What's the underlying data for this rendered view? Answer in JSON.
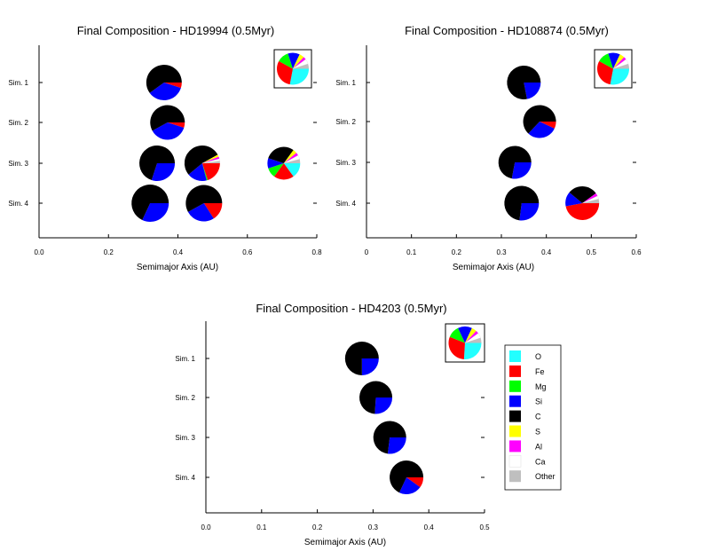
{
  "colors": {
    "O": "#22ffff",
    "Fe": "#ff0000",
    "Mg": "#00ff00",
    "Si": "#0000ff",
    "C": "#000000",
    "S": "#ffff00",
    "Al": "#ff00ff",
    "Ca": "#ffffff",
    "Other": "#bfbfbf"
  },
  "legend": {
    "items": [
      {
        "key": "O",
        "label": "O"
      },
      {
        "key": "Fe",
        "label": "Fe"
      },
      {
        "key": "Mg",
        "label": "Mg"
      },
      {
        "key": "Si",
        "label": "Si"
      },
      {
        "key": "C",
        "label": "C"
      },
      {
        "key": "S",
        "label": "S"
      },
      {
        "key": "Al",
        "label": "Al"
      },
      {
        "key": "Ca",
        "label": "Ca"
      },
      {
        "key": "Other",
        "label": "Other"
      }
    ]
  },
  "chart_data": [
    {
      "type": "scatter",
      "subtype": "pie-markers",
      "title": "Final Composition - HD19994 (0.5Myr)",
      "xlabel": "Semimajor Axis (AU)",
      "xlim": [
        0.0,
        0.8
      ],
      "xticks": [
        "0.0",
        "0.2",
        "0.4",
        "0.6",
        "0.8"
      ],
      "yticks": [
        "Sim. 1",
        "Sim. 2",
        "Sim. 3",
        "Sim. 4"
      ],
      "reference": {
        "O": 0.28,
        "Fe": 0.3,
        "Mg": 0.12,
        "Si": 0.12,
        "C": 0.0,
        "S": 0.05,
        "Al": 0.03,
        "Ca": 0.05,
        "Other": 0.05
      },
      "planets": [
        {
          "sim": 1,
          "a": 0.36,
          "mass": 1.0,
          "comp": {
            "O": 0,
            "Fe": 0.05,
            "Mg": 0,
            "Si": 0.35,
            "C": 0.6,
            "S": 0,
            "Al": 0,
            "Ca": 0,
            "Other": 0
          }
        },
        {
          "sim": 2,
          "a": 0.37,
          "mass": 0.95,
          "comp": {
            "O": 0,
            "Fe": 0.05,
            "Mg": 0,
            "Si": 0.37,
            "C": 0.58,
            "S": 0,
            "Al": 0,
            "Ca": 0,
            "Other": 0
          }
        },
        {
          "sim": 3,
          "a": 0.34,
          "mass": 1.0,
          "comp": {
            "O": 0,
            "Fe": 0,
            "Mg": 0,
            "Si": 0.3,
            "C": 0.7,
            "S": 0,
            "Al": 0,
            "Ca": 0,
            "Other": 0
          }
        },
        {
          "sim": 3,
          "a": 0.47,
          "mass": 1.0,
          "comp": {
            "O": 0,
            "Fe": 0.2,
            "Mg": 0.01,
            "Si": 0.18,
            "C": 0.53,
            "S": 0.02,
            "Al": 0.02,
            "Ca": 0.02,
            "Other": 0.02
          }
        },
        {
          "sim": 3,
          "a": 0.705,
          "mass": 0.85,
          "comp": {
            "O": 0.15,
            "Fe": 0.2,
            "Mg": 0.1,
            "Si": 0.1,
            "C": 0.3,
            "S": 0.04,
            "Al": 0.03,
            "Ca": 0.04,
            "Other": 0.04
          }
        },
        {
          "sim": 4,
          "a": 0.32,
          "mass": 1.1,
          "comp": {
            "O": 0,
            "Fe": 0,
            "Mg": 0,
            "Si": 0.32,
            "C": 0.68,
            "S": 0,
            "Al": 0,
            "Ca": 0,
            "Other": 0
          }
        },
        {
          "sim": 4,
          "a": 0.475,
          "mass": 1.05,
          "comp": {
            "O": 0,
            "Fe": 0.16,
            "Mg": 0,
            "Si": 0.26,
            "C": 0.58,
            "S": 0,
            "Al": 0,
            "Ca": 0,
            "Other": 0
          }
        }
      ]
    },
    {
      "type": "scatter",
      "subtype": "pie-markers",
      "title": "Final Composition - HD108874 (0.5Myr)",
      "xlabel": "Semimajor Axis (AU)",
      "xlim": [
        0.0,
        0.6
      ],
      "xticks": [
        "0",
        "0.1",
        "0.2",
        "0.3",
        "0.4",
        "0.5",
        "0.6"
      ],
      "yticks": [
        "Sim. 1",
        "Sim. 2",
        "Sim. 3",
        "Sim. 4"
      ],
      "reference": {
        "O": 0.28,
        "Fe": 0.3,
        "Mg": 0.12,
        "Si": 0.12,
        "C": 0.0,
        "S": 0.05,
        "Al": 0.03,
        "Ca": 0.05,
        "Other": 0.05
      },
      "planets": [
        {
          "sim": 1,
          "a": 0.35,
          "mass": 1.0,
          "comp": {
            "O": 0,
            "Fe": 0,
            "Mg": 0,
            "Si": 0.22,
            "C": 0.78,
            "S": 0,
            "Al": 0,
            "Ca": 0,
            "Other": 0
          }
        },
        {
          "sim": 2,
          "a": 0.385,
          "mass": 0.95,
          "comp": {
            "O": 0,
            "Fe": 0.07,
            "Mg": 0,
            "Si": 0.3,
            "C": 0.63,
            "S": 0,
            "Al": 0,
            "Ca": 0,
            "Other": 0
          }
        },
        {
          "sim": 3,
          "a": 0.33,
          "mass": 0.95,
          "comp": {
            "O": 0,
            "Fe": 0,
            "Mg": 0,
            "Si": 0.28,
            "C": 0.72,
            "S": 0,
            "Al": 0,
            "Ca": 0,
            "Other": 0
          }
        },
        {
          "sim": 4,
          "a": 0.345,
          "mass": 1.05,
          "comp": {
            "O": 0,
            "Fe": 0,
            "Mg": 0,
            "Si": 0.27,
            "C": 0.73,
            "S": 0,
            "Al": 0,
            "Ca": 0,
            "Other": 0
          }
        },
        {
          "sim": 4,
          "a": 0.48,
          "mass": 1.0,
          "comp": {
            "O": 0,
            "Fe": 0.47,
            "Mg": 0,
            "Si": 0.14,
            "C": 0.29,
            "S": 0,
            "Al": 0.03,
            "Ca": 0.03,
            "Other": 0.04
          }
        }
      ]
    },
    {
      "type": "scatter",
      "subtype": "pie-markers",
      "title": "Final Composition - HD4203 (0.5Myr)",
      "xlabel": "Semimajor Axis (AU)",
      "xlim": [
        0.0,
        0.5
      ],
      "xticks": [
        "0.0",
        "0.1",
        "0.2",
        "0.3",
        "0.4",
        "0.5"
      ],
      "yticks": [
        "Sim. 1",
        "Sim. 2",
        "Sim. 3",
        "Sim. 4"
      ],
      "reference": {
        "O": 0.26,
        "Fe": 0.3,
        "Mg": 0.12,
        "Si": 0.14,
        "C": 0.0,
        "S": 0.05,
        "Al": 0.03,
        "Ca": 0.05,
        "Other": 0.05
      },
      "planets": [
        {
          "sim": 1,
          "a": 0.28,
          "mass": 1.0,
          "comp": {
            "O": 0,
            "Fe": 0,
            "Mg": 0,
            "Si": 0.25,
            "C": 0.75,
            "S": 0,
            "Al": 0,
            "Ca": 0,
            "Other": 0
          }
        },
        {
          "sim": 2,
          "a": 0.305,
          "mass": 0.95,
          "comp": {
            "O": 0,
            "Fe": 0,
            "Mg": 0,
            "Si": 0.26,
            "C": 0.74,
            "S": 0,
            "Al": 0,
            "Ca": 0,
            "Other": 0
          }
        },
        {
          "sim": 3,
          "a": 0.33,
          "mass": 0.95,
          "comp": {
            "O": 0,
            "Fe": 0,
            "Mg": 0,
            "Si": 0.27,
            "C": 0.73,
            "S": 0,
            "Al": 0,
            "Ca": 0,
            "Other": 0
          }
        },
        {
          "sim": 4,
          "a": 0.36,
          "mass": 1.0,
          "comp": {
            "O": 0,
            "Fe": 0.1,
            "Mg": 0,
            "Si": 0.22,
            "C": 0.68,
            "S": 0,
            "Al": 0,
            "Ca": 0,
            "Other": 0
          }
        }
      ]
    }
  ]
}
